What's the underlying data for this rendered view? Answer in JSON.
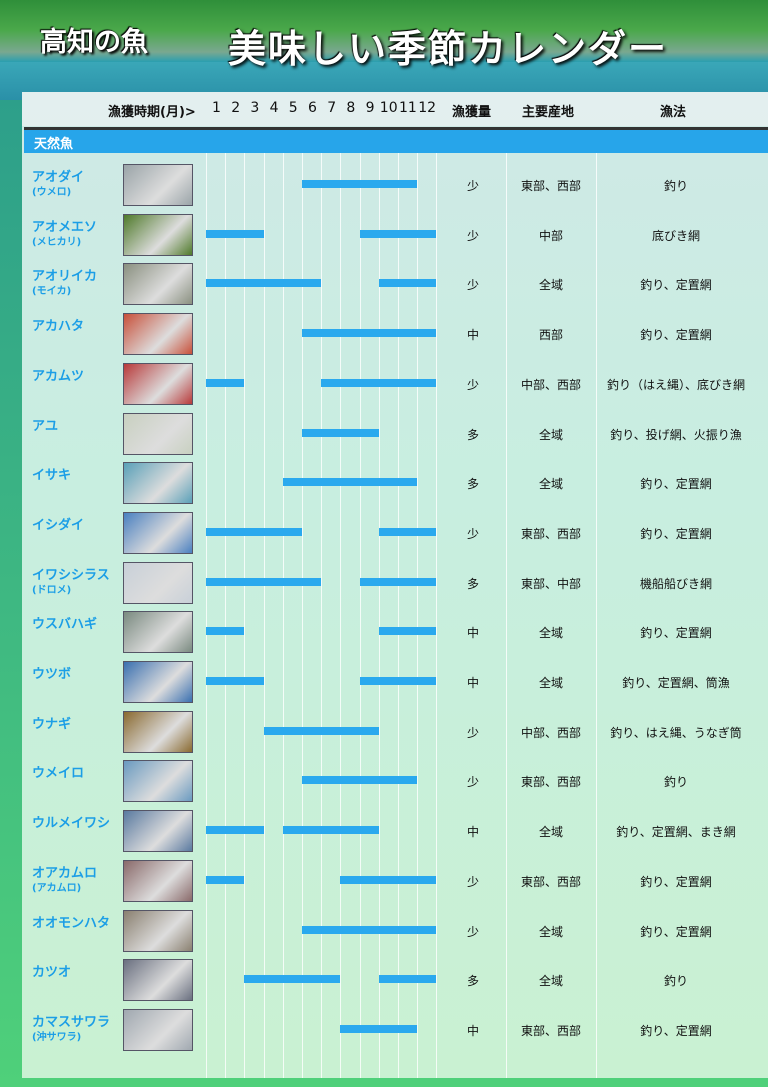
{
  "header": {
    "subtitle": "高知の魚",
    "title": "美味しい季節カレンダー"
  },
  "columns": {
    "period": "漁獲時期(月)>",
    "months": [
      "1",
      "2",
      "3",
      "4",
      "5",
      "6",
      "7",
      "8",
      "9",
      "10",
      "11",
      "12"
    ],
    "amount": "漁獲量",
    "area": "主要産地",
    "method": "漁法"
  },
  "category": "天然魚",
  "colors": {
    "bar": "#2aa9ee",
    "name": "#1b9ee6",
    "category": "#27a5ea"
  },
  "fish": [
    {
      "name": "アオダイ",
      "alt": "(ウメロ)",
      "periods": [
        [
          6,
          11
        ]
      ],
      "amount": "少",
      "area": "東部、西部",
      "method": "釣り",
      "img": "#9aa4a8"
    },
    {
      "name": "アオメエソ",
      "alt": "(メヒカリ)",
      "periods": [
        [
          1,
          3
        ],
        [
          9,
          12
        ]
      ],
      "amount": "少",
      "area": "中部",
      "method": "底びき網",
      "img": "#4f7a2a"
    },
    {
      "name": "アオリイカ",
      "alt": "(モイカ)",
      "periods": [
        [
          1,
          6
        ],
        [
          10,
          12
        ]
      ],
      "amount": "少",
      "area": "全域",
      "method": "釣り、定置網",
      "img": "#8a9080"
    },
    {
      "name": "アカハタ",
      "alt": "",
      "periods": [
        [
          6,
          12
        ]
      ],
      "amount": "中",
      "area": "西部",
      "method": "釣り、定置網",
      "img": "#c8503a"
    },
    {
      "name": "アカムツ",
      "alt": "",
      "periods": [
        [
          1,
          2
        ],
        [
          7,
          12
        ]
      ],
      "amount": "少",
      "area": "中部、西部",
      "method": "釣り（はえ縄）、底びき網",
      "img": "#b83a3a"
    },
    {
      "name": "アユ",
      "alt": "",
      "periods": [
        [
          6,
          9
        ]
      ],
      "amount": "多",
      "area": "全域",
      "method": "釣り、投げ網、火振り漁",
      "img": "#c8d0c0"
    },
    {
      "name": "イサキ",
      "alt": "",
      "periods": [
        [
          5,
          11
        ]
      ],
      "amount": "多",
      "area": "全域",
      "method": "釣り、定置網",
      "img": "#5aa0b8"
    },
    {
      "name": "イシダイ",
      "alt": "",
      "periods": [
        [
          1,
          5
        ],
        [
          10,
          12
        ]
      ],
      "amount": "少",
      "area": "東部、西部",
      "method": "釣り、定置網",
      "img": "#4a80c0"
    },
    {
      "name": "イワシシラス",
      "alt": "(ドロメ)",
      "periods": [
        [
          1,
          6
        ],
        [
          9,
          12
        ]
      ],
      "amount": "多",
      "area": "東部、中部",
      "method": "機船船びき網",
      "img": "#c8d0d8"
    },
    {
      "name": "ウスバハギ",
      "alt": "",
      "periods": [
        [
          1,
          2
        ],
        [
          10,
          12
        ]
      ],
      "amount": "中",
      "area": "全域",
      "method": "釣り、定置網",
      "img": "#7a8a80"
    },
    {
      "name": "ウツボ",
      "alt": "",
      "periods": [
        [
          1,
          3
        ],
        [
          9,
          12
        ]
      ],
      "amount": "中",
      "area": "全域",
      "method": "釣り、定置網、筒漁",
      "img": "#3a70b0"
    },
    {
      "name": "ウナギ",
      "alt": "",
      "periods": [
        [
          4,
          9
        ]
      ],
      "amount": "少",
      "area": "中部、西部",
      "method": "釣り、はえ縄、うなぎ筒",
      "img": "#8a6a30"
    },
    {
      "name": "ウメイロ",
      "alt": "",
      "periods": [
        [
          6,
          11
        ]
      ],
      "amount": "少",
      "area": "東部、西部",
      "method": "釣り",
      "img": "#6a9ac0"
    },
    {
      "name": "ウルメイワシ",
      "alt": "",
      "periods": [
        [
          1,
          3
        ],
        [
          5,
          9
        ]
      ],
      "amount": "中",
      "area": "全域",
      "method": "釣り、定置網、まき網",
      "img": "#5a7aa0"
    },
    {
      "name": "オアカムロ",
      "alt": "(アカムロ)",
      "periods": [
        [
          1,
          2
        ],
        [
          8,
          12
        ]
      ],
      "amount": "少",
      "area": "東部、西部",
      "method": "釣り、定置網",
      "img": "#8a6a6a"
    },
    {
      "name": "オオモンハタ",
      "alt": "",
      "periods": [
        [
          6,
          12
        ]
      ],
      "amount": "少",
      "area": "全域",
      "method": "釣り、定置網",
      "img": "#8a8070"
    },
    {
      "name": "カツオ",
      "alt": "",
      "periods": [
        [
          3,
          7
        ],
        [
          10,
          12
        ]
      ],
      "amount": "多",
      "area": "全域",
      "method": "釣り",
      "img": "#6a7080"
    },
    {
      "name": "カマスサワラ",
      "alt": "(沖サワラ)",
      "periods": [
        [
          8,
          11
        ]
      ],
      "amount": "中",
      "area": "東部、西部",
      "method": "釣り、定置網",
      "img": "#a0a8b0"
    }
  ]
}
